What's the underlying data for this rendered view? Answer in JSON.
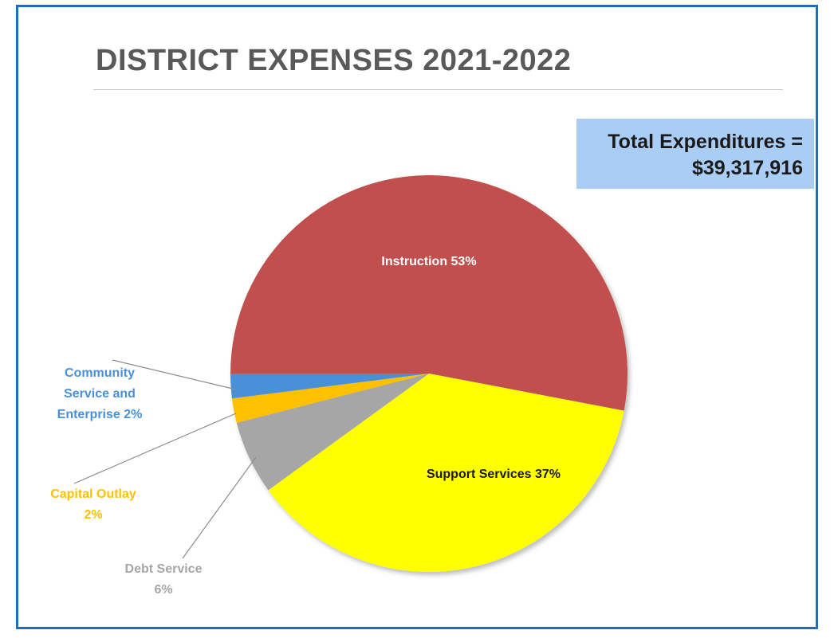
{
  "slide": {
    "title": "DISTRICT EXPENSES 2021-2022",
    "total_label": "Total Expenditures =",
    "total_value": "$39,317,916"
  },
  "chart_data": {
    "type": "pie",
    "title": "DISTRICT EXPENSES 2021-2022",
    "start_angle_deg": 180,
    "direction": "clockwise",
    "slices": [
      {
        "name": "Instruction",
        "value": 53,
        "label": "Instruction 53%",
        "color": "#c0504d",
        "label_color": "#ffffff"
      },
      {
        "name": "Support Services",
        "value": 37,
        "label": "Support Services 37%",
        "color": "#ffff00",
        "label_color": "#1a1a1a"
      },
      {
        "name": "Debt Service",
        "value": 6,
        "label_lines": [
          "Debt Service",
          "6%"
        ],
        "color": "#a6a6a6",
        "label_color": "#a6a6a6"
      },
      {
        "name": "Capital Outlay",
        "value": 2,
        "label_lines": [
          "Capital Outlay",
          "2%"
        ],
        "color": "#ffc000",
        "label_color": "#ffc000"
      },
      {
        "name": "Community Service and Enterprise",
        "value": 2,
        "label_lines": [
          "Community",
          "Service and",
          "Enterprise 2%"
        ],
        "color": "#4a90d9",
        "label_color": "#4a90d9"
      }
    ]
  }
}
